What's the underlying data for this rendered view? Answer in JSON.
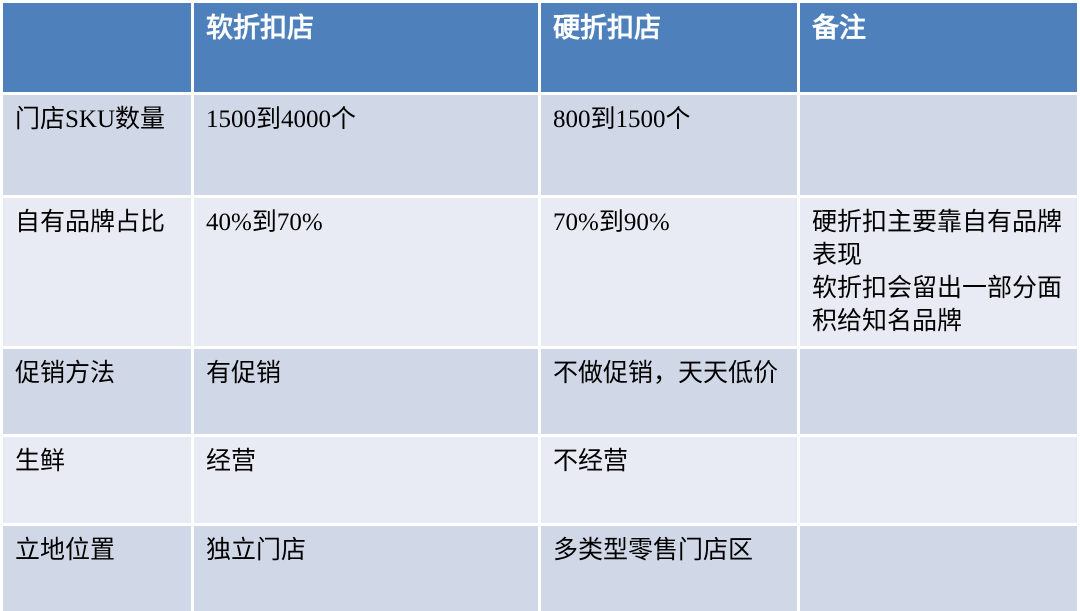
{
  "table": {
    "columns": [
      "",
      "软折扣店",
      "硬折扣店",
      "备注"
    ],
    "rows": [
      {
        "label": "门店SKU数量",
        "soft": "1500到4000个",
        "hard": "800到1500个",
        "note": ""
      },
      {
        "label": "自有品牌占比",
        "soft": "40%到70%",
        "hard": "70%到90%",
        "note_lines": [
          "硬折扣主要靠自有品牌表现",
          "软折扣会留出一部分面积给知名品牌"
        ]
      },
      {
        "label": "促销方法",
        "soft": "有促销",
        "hard": "不做促销，天天低价",
        "note": ""
      },
      {
        "label": "生鲜",
        "soft": "经营",
        "hard": "不经营",
        "note": ""
      },
      {
        "label": "立地位置",
        "soft": "独立门店",
        "hard": "多类型零售门店区",
        "note": ""
      }
    ],
    "colors": {
      "header_bg": "#4e80bc",
      "header_text": "#ffffff",
      "row_band_dark": "#d0d7e6",
      "row_band_light": "#e8ebf3",
      "body_text": "#000000",
      "grid": "#ffffff"
    }
  }
}
